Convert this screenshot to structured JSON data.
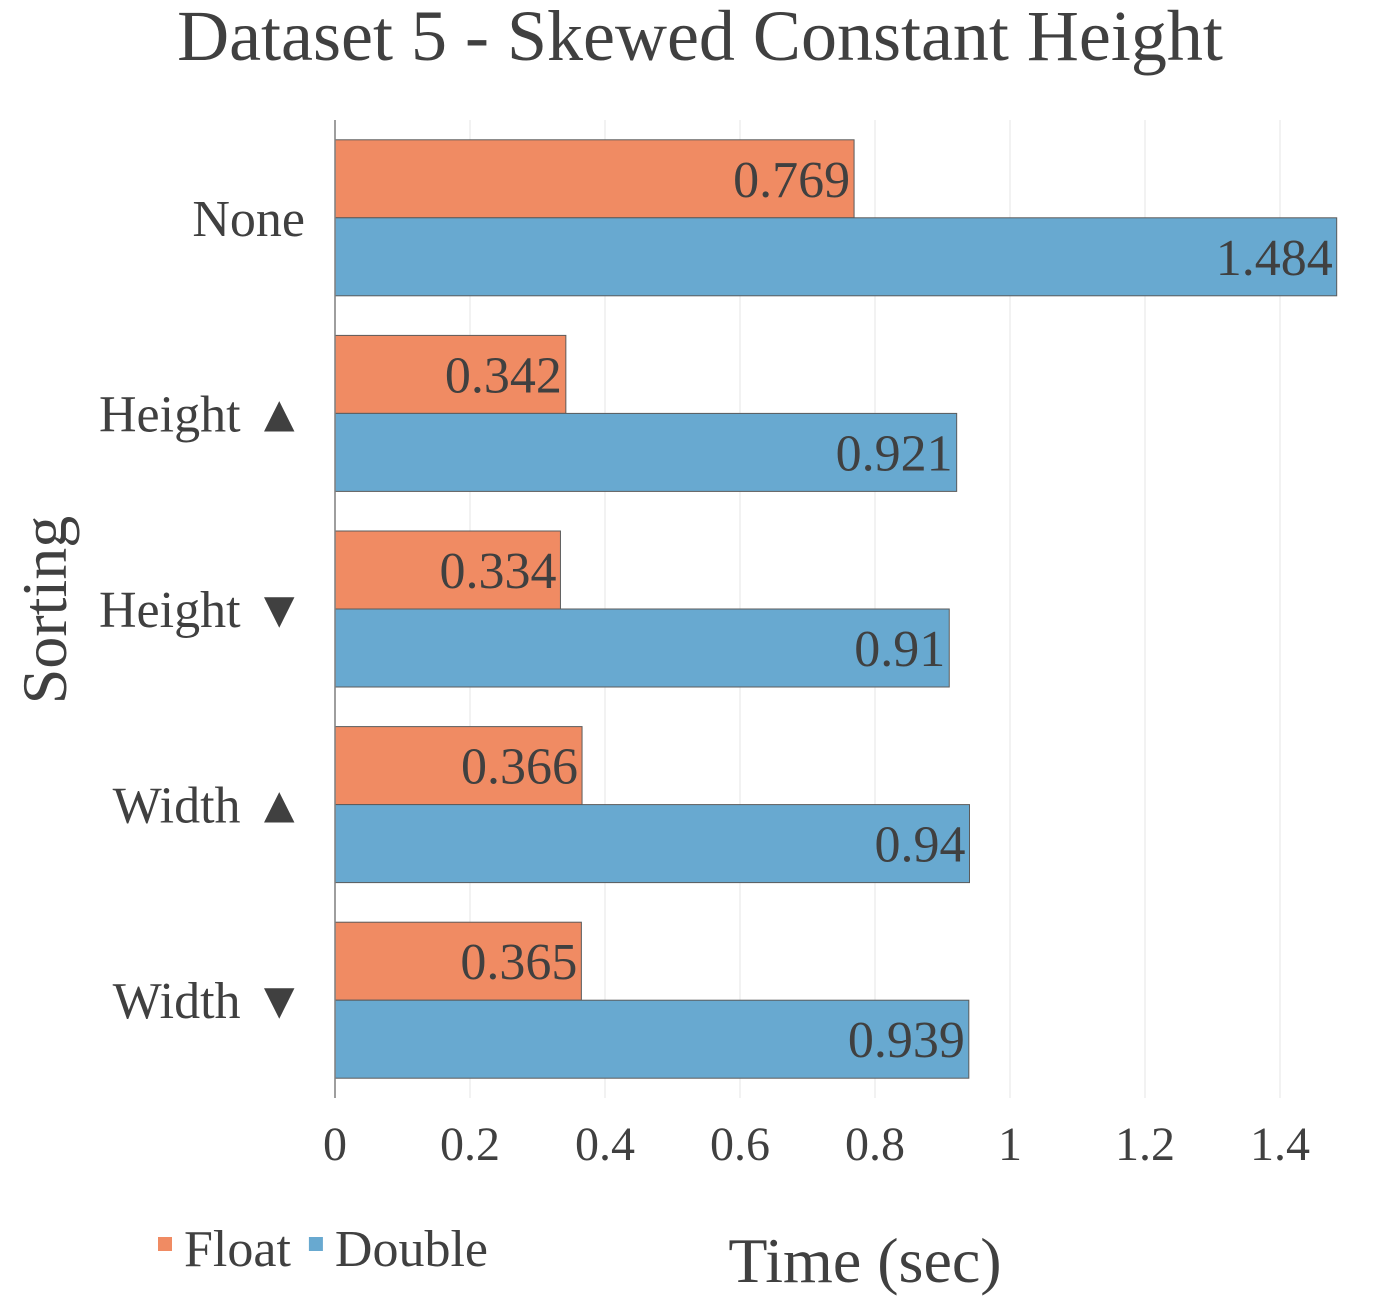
{
  "chart_data": {
    "type": "bar",
    "orientation": "horizontal",
    "title": "Dataset 5 - Skewed Constant Height",
    "xlabel": "Time (sec)",
    "ylabel": "Sorting",
    "categories": [
      "None",
      "Height ▲",
      "Height ▼",
      "Width ▲",
      "Width ▼"
    ],
    "series": [
      {
        "name": "Float",
        "color": "#f08b63",
        "values": [
          0.769,
          0.342,
          0.334,
          0.366,
          0.365
        ],
        "labels": [
          "0.769",
          "0.342",
          "0.334",
          "0.366",
          "0.365"
        ]
      },
      {
        "name": "Double",
        "color": "#68a9d0",
        "values": [
          1.484,
          0.921,
          0.91,
          0.94,
          0.939
        ],
        "labels": [
          "1.484",
          "0.921",
          "0.91",
          "0.94",
          "0.939"
        ]
      }
    ],
    "xlim": [
      0,
      1.4
    ],
    "xticks": [
      "0",
      "0.2",
      "0.4",
      "0.6",
      "0.8",
      "1",
      "1.2",
      "1.4"
    ],
    "xtick_values": [
      0,
      0.2,
      0.4,
      0.6,
      0.8,
      1,
      1.2,
      1.4
    ],
    "grid": true,
    "legend_position": "bottom-left"
  }
}
